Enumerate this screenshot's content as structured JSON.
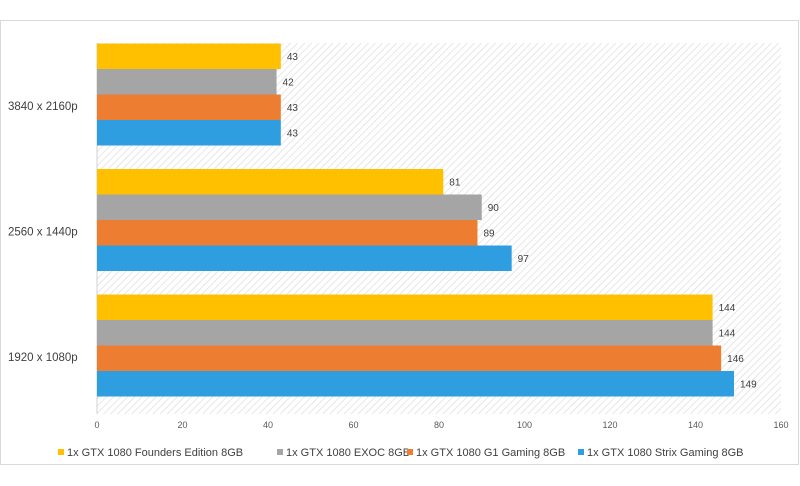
{
  "chart_data": {
    "type": "bar",
    "orientation": "horizontal",
    "categories": [
      "3840 x 2160p",
      "2560 x 1440p",
      "1920 x 1080p"
    ],
    "series": [
      {
        "name": "1x GTX 1080 Founders Edition 8GB",
        "color": "#ffc000",
        "values": [
          43,
          81,
          144
        ]
      },
      {
        "name": "1x GTX 1080 EXOC 8GB",
        "color": "#a5a5a5",
        "values": [
          42,
          90,
          144
        ]
      },
      {
        "name": "1x GTX 1080 G1 Gaming 8GB",
        "color": "#ed7d31",
        "values": [
          43,
          89,
          146
        ]
      },
      {
        "name": "1x GTX 1080 Strix Gaming 8GB",
        "color": "#2e9ee0",
        "values": [
          43,
          97,
          149
        ]
      }
    ],
    "xlim": [
      0,
      160
    ],
    "xticks": [
      0,
      20,
      40,
      60,
      80,
      100,
      120,
      140,
      160
    ],
    "title": "",
    "xlabel": "",
    "ylabel": "",
    "grid": false,
    "legend_position": "bottom",
    "plot_background": "diagonal-hatch"
  }
}
